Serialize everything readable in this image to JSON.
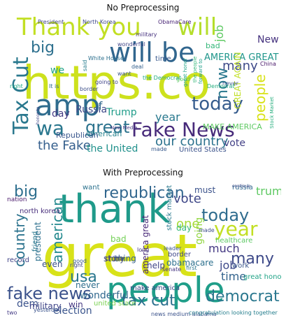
{
  "panels": [
    {
      "title": "No Preprocessing",
      "words": [
        {
          "text": "https:co",
          "color": "#cde11d"
        },
        {
          "text": "Thank you",
          "color": "#c2df23"
        },
        {
          "text": "will be",
          "color": "#31668e"
        },
        {
          "text": "amp",
          "color": "#2f6c8e"
        },
        {
          "text": "Fake News",
          "color": "#472a7a"
        },
        {
          "text": "Tax Cut",
          "color": "#2a788e"
        },
        {
          "text": "wa",
          "color": "#2a778e"
        },
        {
          "text": "great",
          "color": "#2c738e"
        },
        {
          "text": "today",
          "color": "#365c8d"
        },
        {
          "text": "will",
          "color": "#b5de2b"
        },
        {
          "text": "big",
          "color": "#2d708e"
        },
        {
          "text": "now",
          "color": "#2a788e"
        },
        {
          "text": "many",
          "color": "#3e4a89"
        },
        {
          "text": "people",
          "color": "#d8e219"
        },
        {
          "text": "the Fake",
          "color": "#355f8d"
        },
        {
          "text": "our country",
          "color": "#2c728e"
        },
        {
          "text": "the United",
          "color": "#21918c"
        },
        {
          "text": "vote",
          "color": "#424086"
        },
        {
          "text": "year",
          "color": "#29798e"
        },
        {
          "text": "AMERICA GREAT",
          "color": "#1f968b"
        },
        {
          "text": "GREAT AGAIN",
          "color": "#c0df25"
        },
        {
          "text": "Russia",
          "color": "#3e4989"
        },
        {
          "text": "Trump",
          "color": "#1e9c89"
        },
        {
          "text": "If",
          "color": "#31688e"
        },
        {
          "text": "we",
          "color": "#20a386"
        },
        {
          "text": "day",
          "color": "#443a83"
        },
        {
          "text": "New",
          "color": "#46337f"
        },
        {
          "text": "job",
          "color": "#5ec962"
        },
        {
          "text": "American",
          "color": "#26828e"
        },
        {
          "text": "MAKE AMERICA",
          "color": "#5ec962"
        },
        {
          "text": "Republican",
          "color": "#39568c"
        },
        {
          "text": "United States",
          "color": "#3b528b"
        },
        {
          "text": "North Korea",
          "color": "#3e4989"
        },
        {
          "text": "ObamaCare",
          "color": "#482475"
        },
        {
          "text": "President",
          "color": "#414487"
        },
        {
          "text": "military",
          "color": "#46327e"
        },
        {
          "text": "wonderful",
          "color": "#404688"
        },
        {
          "text": "bad",
          "color": "#35b779"
        },
        {
          "text": "time",
          "color": "#38588c"
        },
        {
          "text": "White House",
          "color": "#2d708e"
        },
        {
          "text": "the Democrat",
          "color": "#25ab82"
        },
        {
          "text": "the people",
          "color": "#35b779"
        },
        {
          "text": "China",
          "color": "#481769"
        },
        {
          "text": "New Media",
          "color": "#453781"
        },
        {
          "text": "honor to",
          "color": "#3f4788"
        },
        {
          "text": "It is",
          "color": "#306a8e"
        },
        {
          "text": "right",
          "color": "#22a785"
        },
        {
          "text": "border",
          "color": "#3c4f8a"
        },
        {
          "text": "going to",
          "color": "#404588"
        },
        {
          "text": "never",
          "color": "#3a548c"
        },
        {
          "text": "made",
          "color": "#37598c"
        },
        {
          "text": "Stock Market",
          "color": "#29af7f"
        },
        {
          "text": "Democrat",
          "color": "#28ae80"
        },
        {
          "text": "good",
          "color": "#5cc863"
        },
        {
          "text": "said",
          "color": "#287d8e"
        },
        {
          "text": "forward to",
          "color": "#1f9f88"
        },
        {
          "text": "want",
          "color": "#3a548c"
        },
        {
          "text": "great honor",
          "color": "#20a486"
        },
        {
          "text": "deal",
          "color": "#34608d"
        }
      ]
    },
    {
      "title": "With Preprocessing",
      "words": [
        {
          "text": "great",
          "color": "#d8e219"
        },
        {
          "text": "thank",
          "color": "#1f9a8a"
        },
        {
          "text": "people",
          "color": "#1f9e89"
        },
        {
          "text": "fake news",
          "color": "#3b528b"
        },
        {
          "text": "country",
          "color": "#2c738e"
        },
        {
          "text": "american",
          "color": "#23898e"
        },
        {
          "text": "big",
          "color": "#2e6f8e"
        },
        {
          "text": "today",
          "color": "#2f6c8e"
        },
        {
          "text": "year",
          "color": "#c2df23"
        },
        {
          "text": "usa",
          "color": "#2a778e"
        },
        {
          "text": "tax cut",
          "color": "#2c718e"
        },
        {
          "text": "democrat",
          "color": "#2a778e"
        },
        {
          "text": "republican",
          "color": "#31668e"
        },
        {
          "text": "many",
          "color": "#3e4a89"
        },
        {
          "text": "vote",
          "color": "#3f4788"
        },
        {
          "text": "one",
          "color": "#a5db36"
        },
        {
          "text": "trump",
          "color": "#5ec962"
        },
        {
          "text": "must",
          "color": "#3b528b"
        },
        {
          "text": "much",
          "color": "#443983"
        },
        {
          "text": "time",
          "color": "#33638d"
        },
        {
          "text": "going",
          "color": "#93d741"
        },
        {
          "text": "job",
          "color": "#3e4989"
        },
        {
          "text": "russia",
          "color": "#31688e"
        },
        {
          "text": "election",
          "color": "#3a548c"
        },
        {
          "text": "dem",
          "color": "#3b528b"
        },
        {
          "text": "win",
          "color": "#453882"
        },
        {
          "text": "bad",
          "color": "#73d056"
        },
        {
          "text": "wonderful",
          "color": "#31688e"
        },
        {
          "text": "america great",
          "color": "#482878"
        },
        {
          "text": "make america",
          "color": "#3e4a89"
        },
        {
          "text": "president",
          "color": "#2d708e"
        },
        {
          "text": "military",
          "color": "#404588"
        },
        {
          "text": "obamacare",
          "color": "#2d708e"
        },
        {
          "text": "healthcare",
          "color": "#5cc863"
        },
        {
          "text": "north korea",
          "color": "#472d7b"
        },
        {
          "text": "great honor",
          "color": "#20a386"
        },
        {
          "text": "stock market",
          "color": "#29798e"
        },
        {
          "text": "help",
          "color": "#414487"
        },
        {
          "text": "china",
          "color": "#46337f"
        },
        {
          "text": "want",
          "color": "#2c728e"
        },
        {
          "text": "day",
          "color": "#35b779"
        },
        {
          "text": "record",
          "color": "#414487"
        },
        {
          "text": "united state",
          "color": "#7ad151"
        },
        {
          "text": "news medium alabama",
          "color": "#3b528b"
        },
        {
          "text": "congratulation looking together",
          "color": "#277f8e"
        },
        {
          "text": "nation",
          "color": "#48186a"
        },
        {
          "text": "senate",
          "color": "#453581"
        },
        {
          "text": "border",
          "color": "#3f4788"
        },
        {
          "text": "work",
          "color": "#39568c"
        },
        {
          "text": "never",
          "color": "#2e6e8e"
        },
        {
          "text": "thing",
          "color": "#355f8d"
        },
        {
          "text": "story",
          "color": "#3e4c8a"
        },
        {
          "text": "long",
          "color": "#453781"
        },
        {
          "text": "first",
          "color": "#2a768e"
        },
        {
          "text": "two",
          "color": "#443b84"
        },
        {
          "text": "right",
          "color": "#404688"
        },
        {
          "text": "yesterday",
          "color": "#3a548c"
        },
        {
          "text": "friend",
          "color": "#2a788e"
        },
        {
          "text": "good",
          "color": "#38588c"
        },
        {
          "text": "made",
          "color": "#3d4e8a"
        },
        {
          "text": "continue",
          "color": "#3e4a89"
        },
        {
          "text": "even",
          "color": "#3b528b"
        },
        {
          "text": "leader",
          "color": "#3a548c"
        }
      ]
    }
  ]
}
